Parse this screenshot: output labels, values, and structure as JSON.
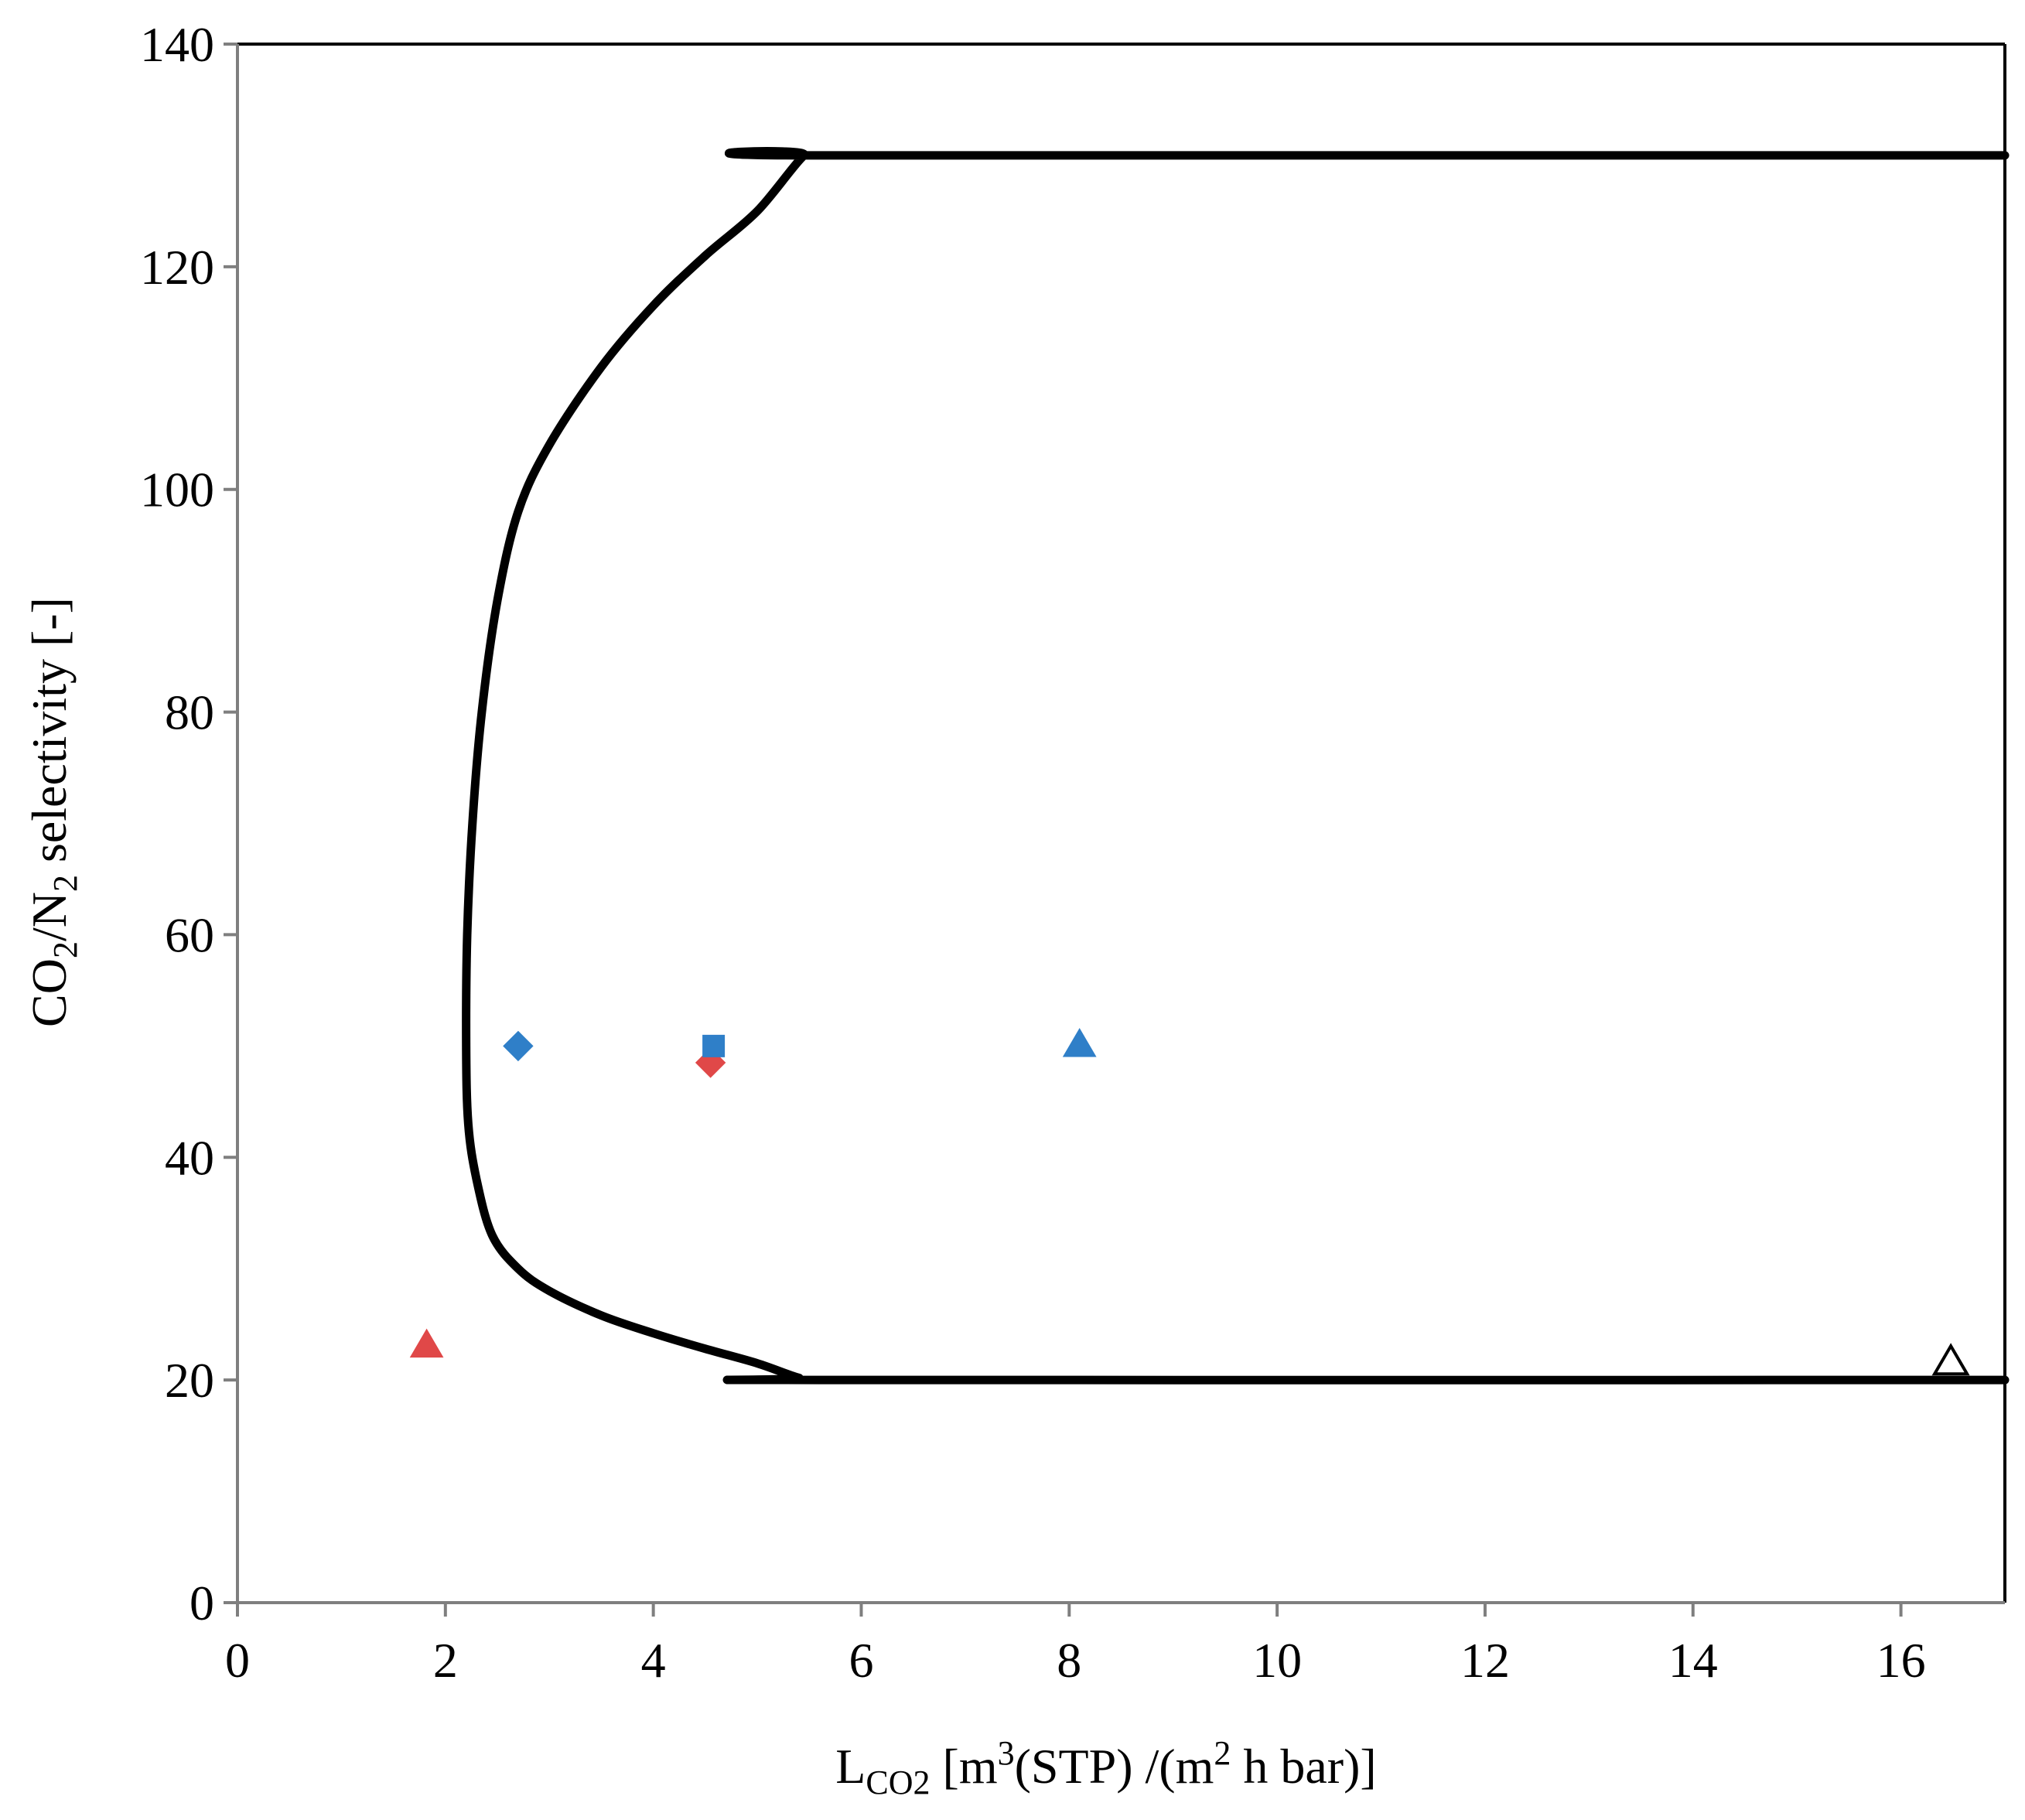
{
  "chart_data": {
    "type": "scatter",
    "title": "",
    "xlabel": {
      "main": "L",
      "sub": "CO2",
      "rest_1": " [m",
      "sup_1": "3",
      "rest_2": "(STP) /(m",
      "sup_2": "2",
      "rest_3": " h bar)]"
    },
    "ylabel": {
      "part_1": "CO",
      "sub_1": "2",
      "part_2": "/N",
      "sub_2": "2",
      "part_3": " selectivity [-]"
    },
    "xlim": [
      0,
      17
    ],
    "ylim": [
      0,
      140
    ],
    "x_ticks": [
      0,
      2,
      4,
      6,
      8,
      10,
      12,
      14,
      16
    ],
    "y_ticks": [
      0,
      20,
      40,
      60,
      80,
      100,
      120,
      140
    ],
    "x_tick_labels": [
      "0",
      "2",
      "4",
      "6",
      "8",
      "10",
      "12",
      "14",
      "16"
    ],
    "y_tick_labels": [
      "0",
      "20",
      "40",
      "60",
      "80",
      "100",
      "120",
      "140"
    ],
    "grid": false,
    "legend": "none",
    "boundary": {
      "color": "#000000",
      "points": [
        [
          17.0,
          130
        ],
        [
          5.6,
          130
        ],
        [
          5.45,
          130
        ],
        [
          5.0,
          125
        ],
        [
          4.5,
          121
        ],
        [
          4.0,
          116.5
        ],
        [
          3.5,
          111
        ],
        [
          3.0,
          104
        ],
        [
          2.7,
          98
        ],
        [
          2.5,
          90
        ],
        [
          2.35,
          80
        ],
        [
          2.26,
          70
        ],
        [
          2.21,
          60
        ],
        [
          2.2,
          50
        ],
        [
          2.22,
          43
        ],
        [
          2.3,
          38
        ],
        [
          2.45,
          33
        ],
        [
          2.7,
          30
        ],
        [
          3.0,
          28
        ],
        [
          3.5,
          25.8
        ],
        [
          4.0,
          24.2
        ],
        [
          4.5,
          22.8
        ],
        [
          5.0,
          21.5
        ],
        [
          5.4,
          20.2
        ],
        [
          5.6,
          20
        ],
        [
          17.0,
          20
        ]
      ]
    },
    "points": [
      {
        "x": 1.82,
        "y": 23,
        "marker": "triangle",
        "color": "#E04848",
        "filled": true
      },
      {
        "x": 2.7,
        "y": 50,
        "marker": "diamond",
        "color": "#2F7FC8",
        "filled": true
      },
      {
        "x": 4.55,
        "y": 48.5,
        "marker": "diamond",
        "color": "#E04848",
        "filled": true
      },
      {
        "x": 4.58,
        "y": 50,
        "marker": "square",
        "color": "#2F7FC8",
        "filled": true
      },
      {
        "x": 8.1,
        "y": 50,
        "marker": "triangle",
        "color": "#2F7FC8",
        "filled": true
      },
      {
        "x": 16.48,
        "y": 21.5,
        "marker": "triangle",
        "color": "#000000",
        "filled": false
      }
    ],
    "colors": {
      "axis": "#7F7F7F",
      "frame": "#000000",
      "blue": "#2F7FC8",
      "red": "#E04848"
    }
  }
}
